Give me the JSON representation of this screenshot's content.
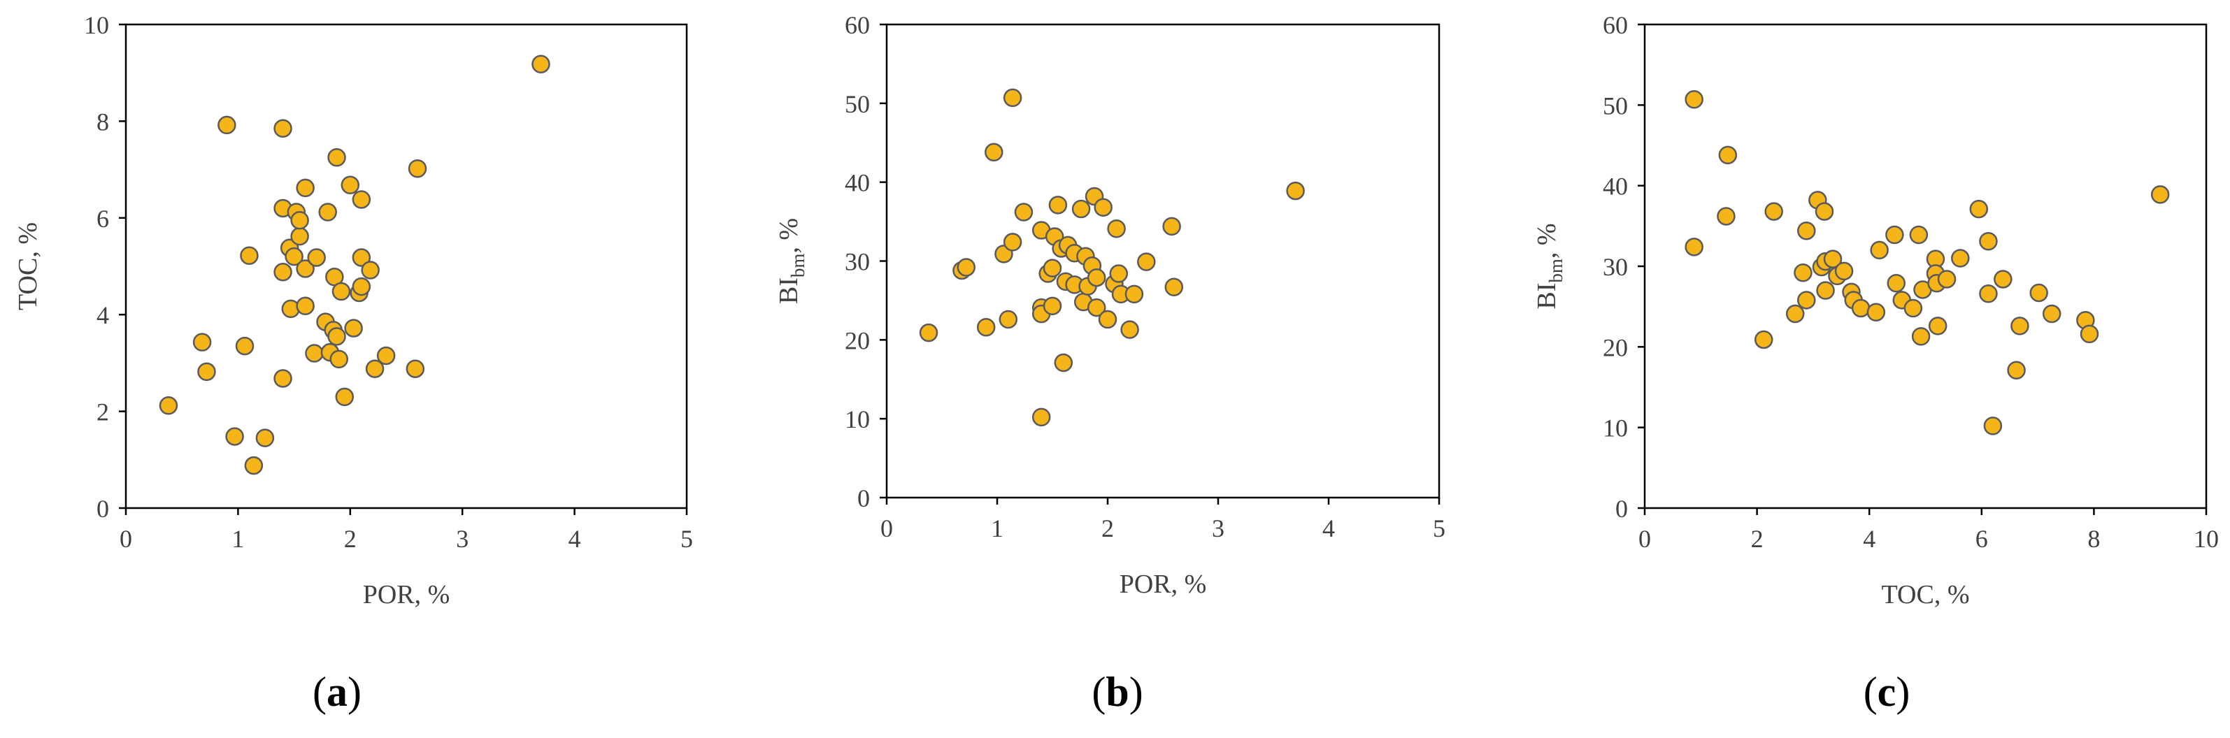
{
  "panels": [
    {
      "caption": "(a)",
      "chart_data": {
        "type": "scatter",
        "xlabel": "POR, %",
        "ylabel": "TOC, %",
        "xlim": [
          0,
          5
        ],
        "ylim": [
          0,
          10
        ],
        "xticks": [
          "0",
          "1",
          "2",
          "3",
          "4",
          "5"
        ],
        "yticks": [
          "0",
          "2",
          "4",
          "6",
          "8",
          "10"
        ],
        "grid": false,
        "marker_color": "#F5B519",
        "points": [
          {
            "x": 0.38,
            "y": 2.12
          },
          {
            "x": 0.68,
            "y": 3.43
          },
          {
            "x": 0.72,
            "y": 2.82
          },
          {
            "x": 0.9,
            "y": 7.92
          },
          {
            "x": 0.97,
            "y": 1.48
          },
          {
            "x": 1.06,
            "y": 3.35
          },
          {
            "x": 1.1,
            "y": 5.22
          },
          {
            "x": 1.14,
            "y": 0.88
          },
          {
            "x": 1.24,
            "y": 1.45
          },
          {
            "x": 1.4,
            "y": 7.85
          },
          {
            "x": 1.4,
            "y": 6.2
          },
          {
            "x": 1.4,
            "y": 4.88
          },
          {
            "x": 1.4,
            "y": 2.68
          },
          {
            "x": 1.46,
            "y": 5.38
          },
          {
            "x": 1.47,
            "y": 4.12
          },
          {
            "x": 1.5,
            "y": 5.2
          },
          {
            "x": 1.52,
            "y": 6.12
          },
          {
            "x": 1.55,
            "y": 5.62
          },
          {
            "x": 1.55,
            "y": 5.95
          },
          {
            "x": 1.6,
            "y": 6.62
          },
          {
            "x": 1.6,
            "y": 4.95
          },
          {
            "x": 1.6,
            "y": 4.18
          },
          {
            "x": 1.68,
            "y": 3.2
          },
          {
            "x": 1.7,
            "y": 5.18
          },
          {
            "x": 1.78,
            "y": 3.85
          },
          {
            "x": 1.8,
            "y": 6.12
          },
          {
            "x": 1.82,
            "y": 3.22
          },
          {
            "x": 1.85,
            "y": 3.68
          },
          {
            "x": 1.86,
            "y": 4.78
          },
          {
            "x": 1.88,
            "y": 3.55
          },
          {
            "x": 1.88,
            "y": 7.25
          },
          {
            "x": 1.9,
            "y": 3.08
          },
          {
            "x": 1.92,
            "y": 4.48
          },
          {
            "x": 1.95,
            "y": 2.3
          },
          {
            "x": 2.0,
            "y": 6.68
          },
          {
            "x": 2.03,
            "y": 3.72
          },
          {
            "x": 2.08,
            "y": 4.45
          },
          {
            "x": 2.1,
            "y": 6.38
          },
          {
            "x": 2.1,
            "y": 5.18
          },
          {
            "x": 2.1,
            "y": 4.58
          },
          {
            "x": 2.18,
            "y": 4.92
          },
          {
            "x": 2.22,
            "y": 2.88
          },
          {
            "x": 2.32,
            "y": 3.15
          },
          {
            "x": 2.58,
            "y": 2.88
          },
          {
            "x": 2.6,
            "y": 7.02
          },
          {
            "x": 3.7,
            "y": 9.18
          }
        ]
      }
    },
    {
      "caption": "(b)",
      "chart_data": {
        "type": "scatter",
        "xlabel": "POR, %",
        "ylabel_main": "BI",
        "ylabel_sub": "bm",
        "ylabel_suffix": ", %",
        "xlim": [
          0,
          5
        ],
        "ylim": [
          0,
          60
        ],
        "xticks": [
          "0",
          "1",
          "2",
          "3",
          "4",
          "5"
        ],
        "yticks": [
          "0",
          "10",
          "20",
          "30",
          "40",
          "50",
          "60"
        ],
        "grid": false,
        "marker_color": "#F5B519",
        "points": [
          {
            "x": 0.38,
            "y": 20.9
          },
          {
            "x": 0.68,
            "y": 28.8
          },
          {
            "x": 0.72,
            "y": 29.2
          },
          {
            "x": 0.9,
            "y": 21.6
          },
          {
            "x": 0.97,
            "y": 43.8
          },
          {
            "x": 1.06,
            "y": 30.9
          },
          {
            "x": 1.1,
            "y": 22.6
          },
          {
            "x": 1.14,
            "y": 50.7
          },
          {
            "x": 1.14,
            "y": 32.4
          },
          {
            "x": 1.24,
            "y": 36.2
          },
          {
            "x": 1.4,
            "y": 33.9
          },
          {
            "x": 1.4,
            "y": 24.1
          },
          {
            "x": 1.4,
            "y": 23.3
          },
          {
            "x": 1.4,
            "y": 10.2
          },
          {
            "x": 1.46,
            "y": 28.4
          },
          {
            "x": 1.5,
            "y": 29.1
          },
          {
            "x": 1.5,
            "y": 24.3
          },
          {
            "x": 1.52,
            "y": 33.1
          },
          {
            "x": 1.55,
            "y": 37.1
          },
          {
            "x": 1.58,
            "y": 31.6
          },
          {
            "x": 1.6,
            "y": 17.1
          },
          {
            "x": 1.62,
            "y": 27.4
          },
          {
            "x": 1.64,
            "y": 32.0
          },
          {
            "x": 1.7,
            "y": 31.0
          },
          {
            "x": 1.7,
            "y": 27.0
          },
          {
            "x": 1.76,
            "y": 36.6
          },
          {
            "x": 1.78,
            "y": 24.8
          },
          {
            "x": 1.8,
            "y": 30.6
          },
          {
            "x": 1.82,
            "y": 26.8
          },
          {
            "x": 1.86,
            "y": 29.4
          },
          {
            "x": 1.88,
            "y": 38.2
          },
          {
            "x": 1.9,
            "y": 27.9
          },
          {
            "x": 1.9,
            "y": 24.1
          },
          {
            "x": 1.96,
            "y": 36.8
          },
          {
            "x": 2.0,
            "y": 22.6
          },
          {
            "x": 2.06,
            "y": 27.1
          },
          {
            "x": 2.08,
            "y": 34.1
          },
          {
            "x": 2.1,
            "y": 28.4
          },
          {
            "x": 2.12,
            "y": 25.8
          },
          {
            "x": 2.2,
            "y": 21.3
          },
          {
            "x": 2.24,
            "y": 25.8
          },
          {
            "x": 2.35,
            "y": 29.9
          },
          {
            "x": 2.58,
            "y": 34.4
          },
          {
            "x": 2.6,
            "y": 26.7
          },
          {
            "x": 3.7,
            "y": 38.9
          }
        ]
      }
    },
    {
      "caption": "(c)",
      "chart_data": {
        "type": "scatter",
        "xlabel": "TOC, %",
        "ylabel_main": "BI",
        "ylabel_sub": "bm",
        "ylabel_suffix": ", %",
        "xlim": [
          0,
          10
        ],
        "ylim": [
          0,
          60
        ],
        "xticks": [
          "0",
          "2",
          "4",
          "6",
          "8",
          "10"
        ],
        "yticks": [
          "0",
          "10",
          "20",
          "30",
          "40",
          "50",
          "60"
        ],
        "grid": false,
        "marker_color": "#F5B519",
        "points": [
          {
            "x": 0.88,
            "y": 50.7
          },
          {
            "x": 0.88,
            "y": 32.4
          },
          {
            "x": 1.45,
            "y": 36.2
          },
          {
            "x": 1.48,
            "y": 43.8
          },
          {
            "x": 2.12,
            "y": 20.9
          },
          {
            "x": 2.3,
            "y": 36.8
          },
          {
            "x": 2.68,
            "y": 24.1
          },
          {
            "x": 2.82,
            "y": 29.2
          },
          {
            "x": 2.88,
            "y": 34.4
          },
          {
            "x": 2.88,
            "y": 25.8
          },
          {
            "x": 3.08,
            "y": 38.2
          },
          {
            "x": 3.15,
            "y": 29.9
          },
          {
            "x": 3.2,
            "y": 36.8
          },
          {
            "x": 3.22,
            "y": 30.6
          },
          {
            "x": 3.22,
            "y": 27.0
          },
          {
            "x": 3.35,
            "y": 30.9
          },
          {
            "x": 3.43,
            "y": 28.8
          },
          {
            "x": 3.55,
            "y": 29.4
          },
          {
            "x": 3.68,
            "y": 26.8
          },
          {
            "x": 3.72,
            "y": 25.8
          },
          {
            "x": 3.85,
            "y": 24.8
          },
          {
            "x": 4.12,
            "y": 24.3
          },
          {
            "x": 4.18,
            "y": 32.0
          },
          {
            "x": 4.45,
            "y": 33.9
          },
          {
            "x": 4.48,
            "y": 27.9
          },
          {
            "x": 4.58,
            "y": 25.8
          },
          {
            "x": 4.78,
            "y": 24.8
          },
          {
            "x": 4.88,
            "y": 33.9
          },
          {
            "x": 4.92,
            "y": 21.3
          },
          {
            "x": 4.95,
            "y": 27.1
          },
          {
            "x": 5.18,
            "y": 30.9
          },
          {
            "x": 5.18,
            "y": 29.1
          },
          {
            "x": 5.2,
            "y": 27.9
          },
          {
            "x": 5.22,
            "y": 22.6
          },
          {
            "x": 5.38,
            "y": 28.4
          },
          {
            "x": 5.62,
            "y": 31.0
          },
          {
            "x": 5.95,
            "y": 37.1
          },
          {
            "x": 6.12,
            "y": 33.1
          },
          {
            "x": 6.12,
            "y": 26.6
          },
          {
            "x": 6.2,
            "y": 10.2
          },
          {
            "x": 6.38,
            "y": 28.4
          },
          {
            "x": 6.62,
            "y": 17.1
          },
          {
            "x": 6.68,
            "y": 22.6
          },
          {
            "x": 7.02,
            "y": 26.7
          },
          {
            "x": 7.25,
            "y": 24.1
          },
          {
            "x": 7.85,
            "y": 23.3
          },
          {
            "x": 7.92,
            "y": 21.6
          },
          {
            "x": 9.18,
            "y": 38.9
          }
        ]
      }
    }
  ]
}
